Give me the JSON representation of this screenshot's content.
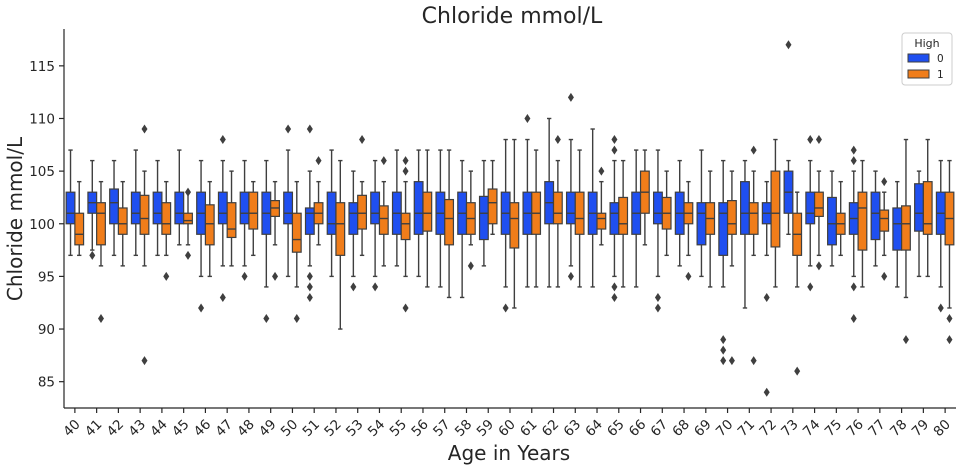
{
  "chart_data": {
    "type": "boxplot",
    "title": "Chloride mmol/L",
    "xlabel": "Age in Years",
    "ylabel": "Chloride mmol/L",
    "ylim": [
      82.5,
      118.5
    ],
    "yticks": [
      85,
      90,
      95,
      100,
      105,
      110,
      115
    ],
    "categories": [
      "40",
      "41",
      "42",
      "43",
      "44",
      "45",
      "46",
      "47",
      "48",
      "49",
      "50",
      "51",
      "52",
      "53",
      "54",
      "55",
      "56",
      "57",
      "58",
      "59",
      "60",
      "61",
      "62",
      "63",
      "64",
      "65",
      "66",
      "67",
      "68",
      "69",
      "70",
      "71",
      "72",
      "73",
      "74",
      "75",
      "76",
      "77",
      "78",
      "79",
      "80"
    ],
    "legend": {
      "title": "High",
      "position": "top-right",
      "entries": [
        "0",
        "1"
      ]
    },
    "series": [
      {
        "name": "0",
        "color": "#1f4ff0",
        "boxes": [
          {
            "cat": "40",
            "whislo": 97,
            "q1": 100,
            "med": 101,
            "q3": 103,
            "whishi": 107,
            "fliers": []
          },
          {
            "cat": "41",
            "whislo": 97.5,
            "q1": 101,
            "med": 102,
            "q3": 103,
            "whishi": 106,
            "fliers": [
              97
            ]
          },
          {
            "cat": "42",
            "whislo": 97,
            "q1": 100,
            "med": 102,
            "q3": 103.3,
            "whishi": 106,
            "fliers": []
          },
          {
            "cat": "43",
            "whislo": 97,
            "q1": 100,
            "med": 101,
            "q3": 103,
            "whishi": 107,
            "fliers": []
          },
          {
            "cat": "44",
            "whislo": 97,
            "q1": 100,
            "med": 101,
            "q3": 103,
            "whishi": 106,
            "fliers": []
          },
          {
            "cat": "45",
            "whislo": 98,
            "q1": 100,
            "med": 101,
            "q3": 103,
            "whishi": 107,
            "fliers": []
          },
          {
            "cat": "46",
            "whislo": 95,
            "q1": 99,
            "med": 101,
            "q3": 103,
            "whishi": 106,
            "fliers": [
              92
            ]
          },
          {
            "cat": "47",
            "whislo": 96,
            "q1": 100,
            "med": 101,
            "q3": 103,
            "whishi": 106,
            "fliers": [
              108,
              93
            ]
          },
          {
            "cat": "48",
            "whislo": 96,
            "q1": 100,
            "med": 101,
            "q3": 103,
            "whishi": 106,
            "fliers": [
              95
            ]
          },
          {
            "cat": "49",
            "whislo": 94,
            "q1": 99,
            "med": 101,
            "q3": 103,
            "whishi": 106,
            "fliers": [
              91
            ]
          },
          {
            "cat": "50",
            "whislo": 95,
            "q1": 100,
            "med": 101,
            "q3": 103,
            "whishi": 107,
            "fliers": [
              109
            ]
          },
          {
            "cat": "51",
            "whislo": 96,
            "q1": 99,
            "med": 101,
            "q3": 101.5,
            "whishi": 105,
            "fliers": [
              109,
              95,
              94,
              93
            ]
          },
          {
            "cat": "52",
            "whislo": 95,
            "q1": 99,
            "med": 100,
            "q3": 103,
            "whishi": 107,
            "fliers": []
          },
          {
            "cat": "53",
            "whislo": 95,
            "q1": 99,
            "med": 101,
            "q3": 102,
            "whishi": 105,
            "fliers": [
              94
            ]
          },
          {
            "cat": "54",
            "whislo": 95,
            "q1": 100,
            "med": 101,
            "q3": 103,
            "whishi": 106,
            "fliers": [
              94
            ]
          },
          {
            "cat": "55",
            "whislo": 96,
            "q1": 99,
            "med": 101,
            "q3": 103,
            "whishi": 107,
            "fliers": []
          },
          {
            "cat": "56",
            "whislo": 95,
            "q1": 99,
            "med": 101,
            "q3": 104,
            "whishi": 107,
            "fliers": []
          },
          {
            "cat": "57",
            "whislo": 94,
            "q1": 99,
            "med": 101,
            "q3": 103,
            "whishi": 107,
            "fliers": []
          },
          {
            "cat": "58",
            "whislo": 93,
            "q1": 99,
            "med": 101,
            "q3": 103,
            "whishi": 106,
            "fliers": []
          },
          {
            "cat": "59",
            "whislo": 96,
            "q1": 98.5,
            "med": 101,
            "q3": 102.6,
            "whishi": 106,
            "fliers": []
          },
          {
            "cat": "60",
            "whislo": 94,
            "q1": 99,
            "med": 101,
            "q3": 103,
            "whishi": 108,
            "fliers": [
              92
            ]
          },
          {
            "cat": "61",
            "whislo": 94,
            "q1": 99,
            "med": 101,
            "q3": 103,
            "whishi": 108,
            "fliers": [
              110
            ]
          },
          {
            "cat": "62",
            "whislo": 94,
            "q1": 100,
            "med": 102,
            "q3": 104,
            "whishi": 110,
            "fliers": []
          },
          {
            "cat": "63",
            "whislo": 96,
            "q1": 100,
            "med": 101,
            "q3": 103,
            "whishi": 108,
            "fliers": [
              112,
              95
            ]
          },
          {
            "cat": "64",
            "whislo": 94,
            "q1": 99,
            "med": 101,
            "q3": 103,
            "whishi": 109,
            "fliers": []
          },
          {
            "cat": "65",
            "whislo": 95,
            "q1": 99,
            "med": 101,
            "q3": 102,
            "whishi": 106,
            "fliers": [
              108,
              107,
              94,
              93
            ]
          },
          {
            "cat": "66",
            "whislo": 94,
            "q1": 99,
            "med": 101,
            "q3": 103,
            "whishi": 107,
            "fliers": []
          },
          {
            "cat": "67",
            "whislo": 95,
            "q1": 100,
            "med": 101,
            "q3": 103,
            "whishi": 107,
            "fliers": [
              93,
              92
            ]
          },
          {
            "cat": "68",
            "whislo": 96,
            "q1": 99,
            "med": 101,
            "q3": 103,
            "whishi": 106,
            "fliers": []
          },
          {
            "cat": "69",
            "whislo": 95,
            "q1": 98,
            "med": 101,
            "q3": 102,
            "whishi": 107,
            "fliers": []
          },
          {
            "cat": "70",
            "whislo": 94,
            "q1": 97,
            "med": 101,
            "q3": 102,
            "whishi": 106,
            "fliers": [
              89,
              88,
              87
            ]
          },
          {
            "cat": "71",
            "whislo": 92,
            "q1": 99,
            "med": 101,
            "q3": 104,
            "whishi": 106,
            "fliers": []
          },
          {
            "cat": "72",
            "whislo": 97,
            "q1": 100,
            "med": 101,
            "q3": 102,
            "whishi": 104,
            "fliers": [
              93,
              84
            ]
          },
          {
            "cat": "73",
            "whislo": 99,
            "q1": 101,
            "med": 103,
            "q3": 105,
            "whishi": 106,
            "fliers": [
              117
            ]
          },
          {
            "cat": "74",
            "whislo": 96,
            "q1": 100,
            "med": 101,
            "q3": 103,
            "whishi": 106,
            "fliers": [
              108,
              94
            ]
          },
          {
            "cat": "75",
            "whislo": 96,
            "q1": 98,
            "med": 100,
            "q3": 102.5,
            "whishi": 105,
            "fliers": []
          },
          {
            "cat": "76",
            "whislo": 95,
            "q1": 99,
            "med": 100.5,
            "q3": 102,
            "whishi": 105,
            "fliers": [
              107,
              106,
              94,
              91
            ]
          },
          {
            "cat": "77",
            "whislo": 96,
            "q1": 98.5,
            "med": 101,
            "q3": 103,
            "whishi": 105,
            "fliers": []
          },
          {
            "cat": "78",
            "whislo": 94,
            "q1": 97.5,
            "med": 100,
            "q3": 101.5,
            "whishi": 104,
            "fliers": []
          },
          {
            "cat": "79",
            "whislo": 95,
            "q1": 99.3,
            "med": 101,
            "q3": 103.8,
            "whishi": 105,
            "fliers": []
          },
          {
            "cat": "80",
            "whislo": 94,
            "q1": 99,
            "med": 101,
            "q3": 103,
            "whishi": 106,
            "fliers": [
              92
            ]
          }
        ]
      },
      {
        "name": "1",
        "color": "#f07d1a",
        "boxes": [
          {
            "cat": "40",
            "whislo": 97,
            "q1": 98,
            "med": 99,
            "q3": 101,
            "whishi": 104,
            "fliers": []
          },
          {
            "cat": "41",
            "whislo": 96,
            "q1": 98,
            "med": 101,
            "q3": 102,
            "whishi": 104,
            "fliers": [
              91
            ]
          },
          {
            "cat": "42",
            "whislo": 96,
            "q1": 99,
            "med": 100,
            "q3": 101.5,
            "whishi": 104,
            "fliers": []
          },
          {
            "cat": "43",
            "whislo": 96,
            "q1": 99,
            "med": 100.5,
            "q3": 102.7,
            "whishi": 105,
            "fliers": [
              109,
              87
            ]
          },
          {
            "cat": "44",
            "whislo": 97,
            "q1": 99,
            "med": 100,
            "q3": 102,
            "whishi": 104,
            "fliers": [
              95
            ]
          },
          {
            "cat": "45",
            "whislo": 98,
            "q1": 100,
            "med": 100.3,
            "q3": 101,
            "whishi": 103,
            "fliers": [
              103,
              97
            ]
          },
          {
            "cat": "46",
            "whislo": 95,
            "q1": 98,
            "med": 100,
            "q3": 101.8,
            "whishi": 104,
            "fliers": []
          },
          {
            "cat": "47",
            "whislo": 96,
            "q1": 98.7,
            "med": 99.5,
            "q3": 102,
            "whishi": 105,
            "fliers": []
          },
          {
            "cat": "48",
            "whislo": 97,
            "q1": 99.5,
            "med": 101,
            "q3": 103,
            "whishi": 104,
            "fliers": []
          },
          {
            "cat": "49",
            "whislo": 98,
            "q1": 100.7,
            "med": 101.5,
            "q3": 102.2,
            "whishi": 104,
            "fliers": [
              95
            ]
          },
          {
            "cat": "50",
            "whislo": 94,
            "q1": 97.3,
            "med": 98.5,
            "q3": 101,
            "whishi": 104,
            "fliers": [
              91
            ]
          },
          {
            "cat": "51",
            "whislo": 98,
            "q1": 100,
            "med": 101,
            "q3": 102,
            "whishi": 104,
            "fliers": [
              106
            ]
          },
          {
            "cat": "52",
            "whislo": 90,
            "q1": 97,
            "med": 100,
            "q3": 102,
            "whishi": 106,
            "fliers": []
          },
          {
            "cat": "53",
            "whislo": 97,
            "q1": 99.5,
            "med": 101,
            "q3": 102.7,
            "whishi": 104,
            "fliers": [
              108
            ]
          },
          {
            "cat": "54",
            "whislo": 96,
            "q1": 99,
            "med": 100.5,
            "q3": 101.7,
            "whishi": 104,
            "fliers": [
              106
            ]
          },
          {
            "cat": "55",
            "whislo": 95,
            "q1": 98.5,
            "med": 100,
            "q3": 101,
            "whishi": 104,
            "fliers": [
              106,
              105,
              92
            ]
          },
          {
            "cat": "56",
            "whislo": 94,
            "q1": 99.3,
            "med": 101,
            "q3": 103,
            "whishi": 107,
            "fliers": []
          },
          {
            "cat": "57",
            "whislo": 93,
            "q1": 98,
            "med": 100.5,
            "q3": 102.3,
            "whishi": 107,
            "fliers": []
          },
          {
            "cat": "58",
            "whislo": 98,
            "q1": 99,
            "med": 100.5,
            "q3": 102,
            "whishi": 105,
            "fliers": [
              96
            ]
          },
          {
            "cat": "59",
            "whislo": 99,
            "q1": 100,
            "med": 102,
            "q3": 103.3,
            "whishi": 106,
            "fliers": []
          },
          {
            "cat": "60",
            "whislo": 92,
            "q1": 97.7,
            "med": 100.5,
            "q3": 102,
            "whishi": 108,
            "fliers": []
          },
          {
            "cat": "61",
            "whislo": 94,
            "q1": 99,
            "med": 101,
            "q3": 103,
            "whishi": 107,
            "fliers": []
          },
          {
            "cat": "62",
            "whislo": 94,
            "q1": 100,
            "med": 101,
            "q3": 103,
            "whishi": 106,
            "fliers": [
              108
            ]
          },
          {
            "cat": "63",
            "whislo": 94,
            "q1": 99,
            "med": 100.5,
            "q3": 103,
            "whishi": 107,
            "fliers": []
          },
          {
            "cat": "64",
            "whislo": 98,
            "q1": 99.5,
            "med": 100.5,
            "q3": 101,
            "whishi": 104,
            "fliers": [
              105
            ]
          },
          {
            "cat": "65",
            "whislo": 94,
            "q1": 99,
            "med": 100,
            "q3": 102.5,
            "whishi": 106,
            "fliers": []
          },
          {
            "cat": "66",
            "whislo": 98,
            "q1": 101,
            "med": 103,
            "q3": 105,
            "whishi": 107,
            "fliers": []
          },
          {
            "cat": "67",
            "whislo": 97,
            "q1": 99.5,
            "med": 101,
            "q3": 102.5,
            "whishi": 105,
            "fliers": []
          },
          {
            "cat": "68",
            "whislo": 97,
            "q1": 100,
            "med": 101,
            "q3": 102,
            "whishi": 104,
            "fliers": [
              95
            ]
          },
          {
            "cat": "69",
            "whislo": 94,
            "q1": 99,
            "med": 100.5,
            "q3": 102,
            "whishi": 105,
            "fliers": []
          },
          {
            "cat": "70",
            "whislo": 96,
            "q1": 99,
            "med": 100,
            "q3": 102.2,
            "whishi": 105,
            "fliers": [
              87
            ]
          },
          {
            "cat": "71",
            "whislo": 97,
            "q1": 99,
            "med": 101,
            "q3": 102,
            "whishi": 105,
            "fliers": [
              107,
              87
            ]
          },
          {
            "cat": "72",
            "whislo": 94,
            "q1": 97.8,
            "med": 101,
            "q3": 105,
            "whishi": 108,
            "fliers": []
          },
          {
            "cat": "73",
            "whislo": 94,
            "q1": 97,
            "med": 99,
            "q3": 101,
            "whishi": 103,
            "fliers": [
              86
            ]
          },
          {
            "cat": "74",
            "whislo": 97,
            "q1": 100.7,
            "med": 101.5,
            "q3": 103,
            "whishi": 105,
            "fliers": [
              108,
              96
            ]
          },
          {
            "cat": "75",
            "whislo": 97,
            "q1": 99,
            "med": 100,
            "q3": 101,
            "whishi": 104,
            "fliers": []
          },
          {
            "cat": "76",
            "whislo": 94,
            "q1": 97.5,
            "med": 101.5,
            "q3": 103,
            "whishi": 106,
            "fliers": []
          },
          {
            "cat": "77",
            "whislo": 97,
            "q1": 99.3,
            "med": 100.5,
            "q3": 101.3,
            "whishi": 103,
            "fliers": [
              104,
              95
            ]
          },
          {
            "cat": "78",
            "whislo": 93,
            "q1": 97.5,
            "med": 100,
            "q3": 101.7,
            "whishi": 108,
            "fliers": [
              89
            ]
          },
          {
            "cat": "79",
            "whislo": 95,
            "q1": 99,
            "med": 100,
            "q3": 104,
            "whishi": 108,
            "fliers": []
          },
          {
            "cat": "80",
            "whislo": 92,
            "q1": 98,
            "med": 100.5,
            "q3": 103,
            "whishi": 106,
            "fliers": [
              91,
              89
            ]
          }
        ]
      }
    ]
  }
}
